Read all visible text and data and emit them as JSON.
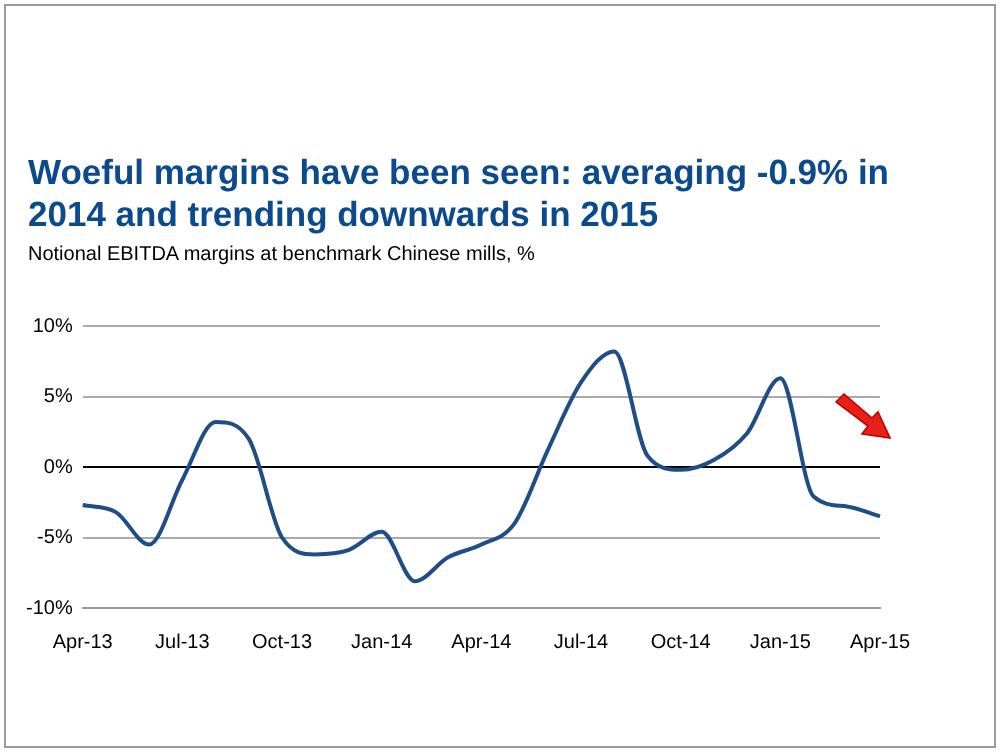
{
  "chart_data": {
    "type": "line",
    "title": "Woeful margins have been seen: averaging -0.9% in 2014 and trending downwards in 2015",
    "subtitle": "Notional EBITDA margins at benchmark Chinese mills, %",
    "categories": [
      "Apr-13",
      null,
      null,
      "Jul-13",
      null,
      null,
      "Oct-13",
      null,
      null,
      "Jan-14",
      null,
      null,
      "Apr-14",
      null,
      null,
      "Jul-14",
      null,
      null,
      "Oct-14",
      null,
      null,
      "Jan-15",
      null,
      null,
      "Apr-15"
    ],
    "series": [
      {
        "color": "#1f4e86",
        "values": [
          -2.7,
          -3.2,
          -5.5,
          -0.9,
          3.2,
          2.0,
          -5.0,
          -6.2,
          -5.9,
          -4.6,
          -8.1,
          -6.4,
          -5.5,
          -4.0,
          1.2,
          6.0,
          8.2,
          0.8,
          -0.2,
          0.5,
          2.4,
          6.3,
          -2.1,
          -2.8,
          -3.5
        ]
      }
    ],
    "ylim": [
      -10,
      10
    ],
    "yticks": [
      {
        "value": -10,
        "label": "-10%"
      },
      {
        "value": -5,
        "label": "-5%"
      },
      {
        "value": 0,
        "label": "0%"
      },
      {
        "value": 5,
        "label": "5%"
      },
      {
        "value": 10,
        "label": "10%"
      }
    ],
    "grid": "y",
    "legend": false,
    "marker": "none",
    "line_style": "solid"
  }
}
